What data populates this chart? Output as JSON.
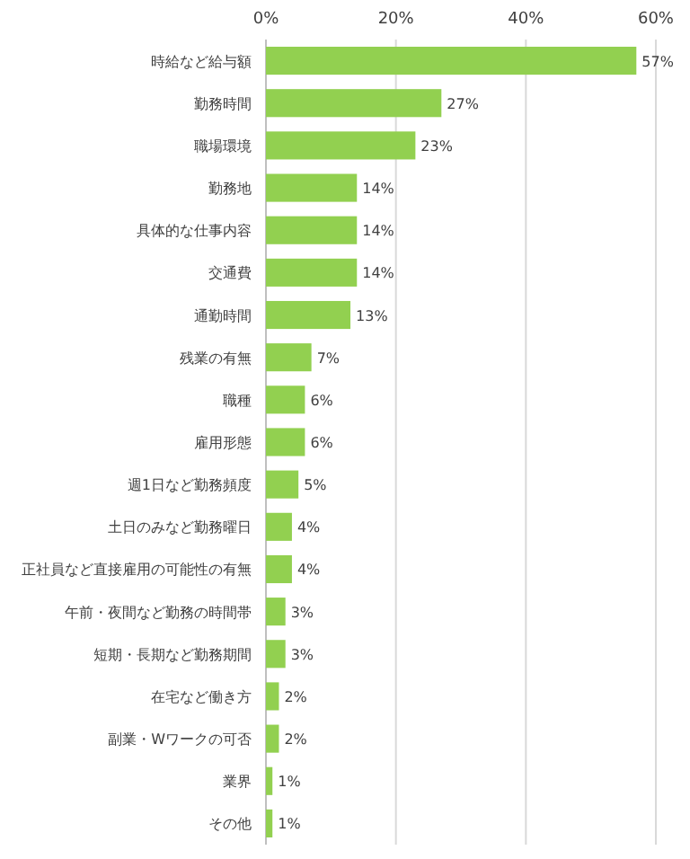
{
  "chart_data": {
    "type": "bar",
    "orientation": "horizontal",
    "categories": [
      "時給など給与額",
      "勤務時間",
      "職場環境",
      "勤務地",
      "具体的な仕事内容",
      "交通費",
      "通勤時間",
      "残業の有無",
      "職種",
      "雇用形態",
      "週1日など勤務頻度",
      "土日のみなど勤務曜日",
      "正社員など直接雇用の可能性の有無",
      "午前・夜間など勤務の時間帯",
      "短期・長期など勤務期間",
      "在宅など働き方",
      "副業・Wワークの可否",
      "業界",
      "その他"
    ],
    "values": [
      57,
      27,
      23,
      14,
      14,
      14,
      13,
      7,
      6,
      6,
      5,
      4,
      4,
      3,
      3,
      2,
      2,
      1,
      1
    ],
    "value_labels": [
      "57%",
      "27%",
      "23%",
      "14%",
      "14%",
      "14%",
      "13%",
      "7%",
      "6%",
      "6%",
      "5%",
      "4%",
      "4%",
      "3%",
      "3%",
      "2%",
      "2%",
      "1%",
      "1%"
    ],
    "color": "#92d050",
    "xlim": [
      0,
      60
    ],
    "xticks": [
      {
        "value": 0,
        "label": "0%"
      },
      {
        "value": 20,
        "label": "20%"
      },
      {
        "value": 40,
        "label": "40%"
      },
      {
        "value": 60,
        "label": "60%"
      }
    ],
    "grid": "x"
  }
}
